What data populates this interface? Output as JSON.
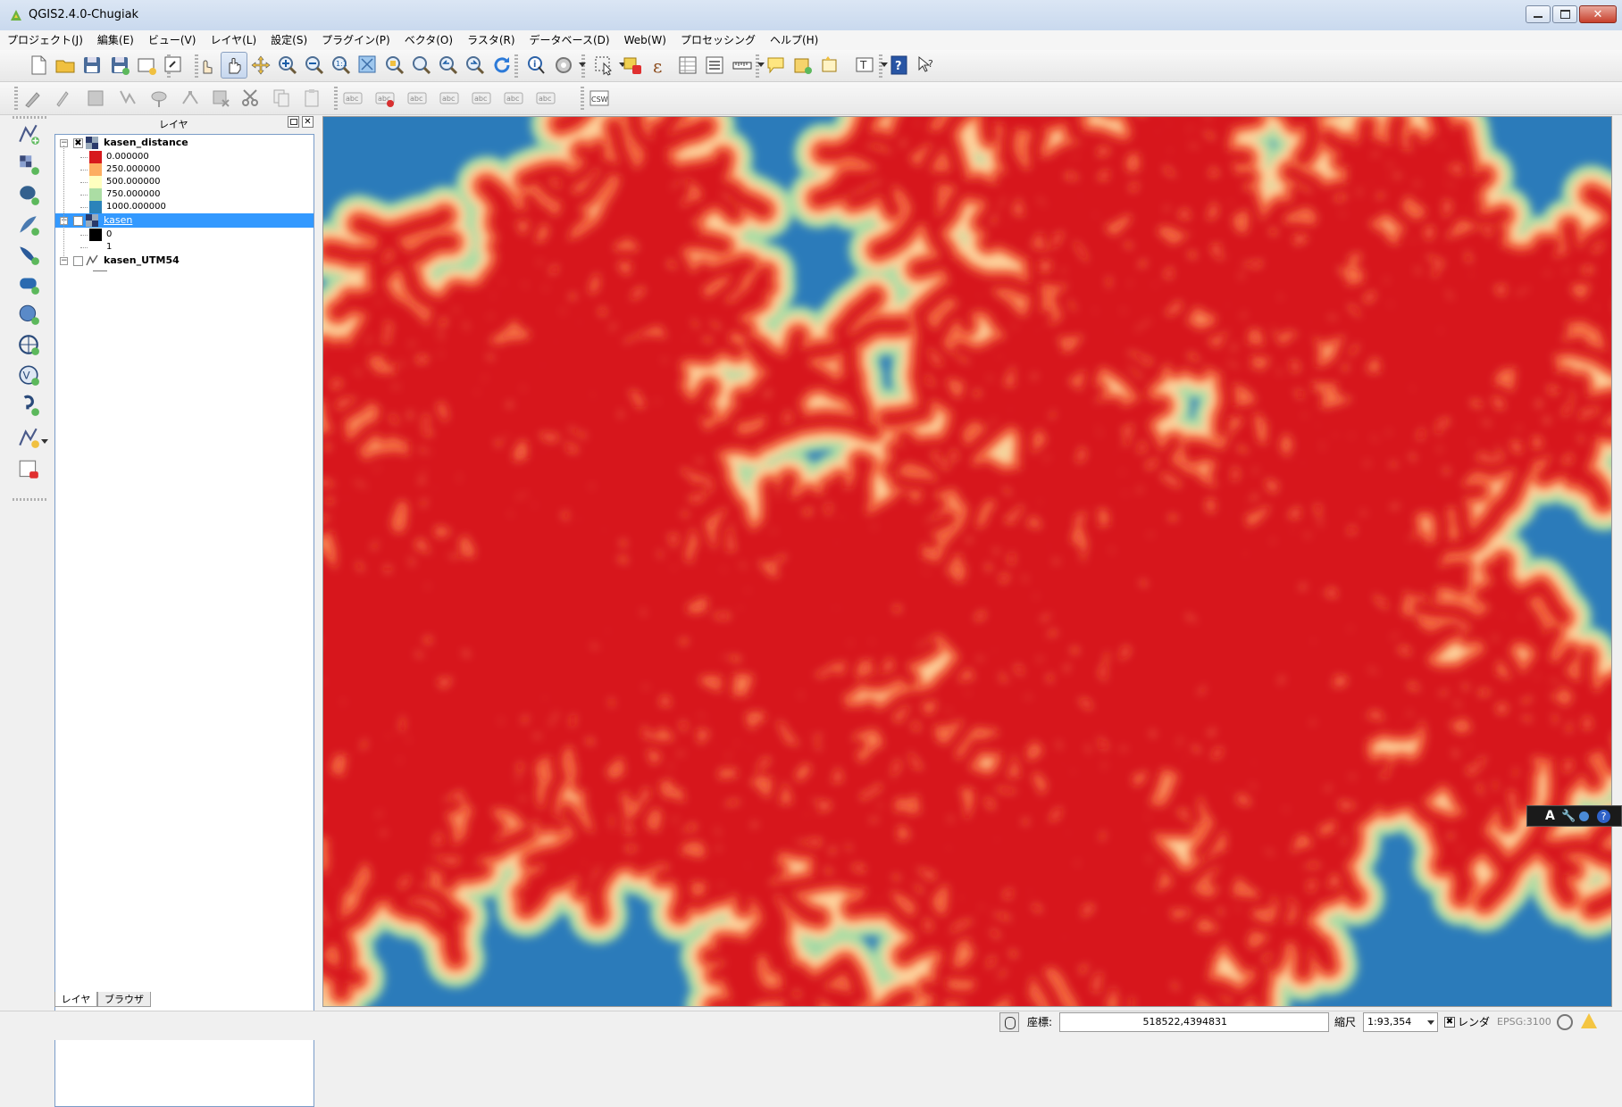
{
  "window": {
    "title": "QGIS2.4.0-Chugiak"
  },
  "menu": [
    "プロジェクト(J)",
    "編集(E)",
    "ビュー(V)",
    "レイヤ(L)",
    "設定(S)",
    "プラグイン(P)",
    "ベクタ(O)",
    "ラスタ(R)",
    "データベース(D)",
    "Web(W)",
    "プロセッシング",
    "ヘルプ(H)"
  ],
  "layer_panel": {
    "title": "レイヤ",
    "layers": [
      {
        "name": "kasen_distance",
        "checked": true,
        "legend": [
          {
            "label": "0.000000",
            "color": "#d7191c"
          },
          {
            "label": "250.000000",
            "color": "#fdae61"
          },
          {
            "label": "500.000000",
            "color": "#ffffbf"
          },
          {
            "label": "750.000000",
            "color": "#abdda4"
          },
          {
            "label": "1000.000000",
            "color": "#2b83ba"
          }
        ]
      },
      {
        "name": "kasen",
        "checked": false,
        "selected": true,
        "legend": [
          {
            "label": "0",
            "color": "#000000"
          },
          {
            "label": "1",
            "color": "#ffffff"
          }
        ]
      },
      {
        "name": "kasen_UTM54",
        "checked": false,
        "legend": []
      }
    ],
    "tabs": [
      "レイヤ",
      "ブラウザ"
    ]
  },
  "map": {
    "colors": {
      "river": "#d7191c",
      "near": "#f46d43",
      "mid": "#fdd49e",
      "far": "#abdda4",
      "background": "#2b7bba"
    }
  },
  "statusbar": {
    "coordinate_label": "座標:",
    "coordinate_value": "518522,4394831",
    "scale_label": "縮尺",
    "scale_value": "1:93,354",
    "render_label": "レンダ",
    "crs": "EPSG:3100"
  },
  "icons": {
    "toolbar1": [
      "new-project-icon",
      "open-project-icon",
      "save-project-icon",
      "save-as-icon",
      "print-composer-icon",
      "composer-manager-icon",
      "touch-zoom-icon",
      "pan-icon",
      "pan-to-selection-icon",
      "zoom-in-icon",
      "zoom-out-icon",
      "zoom-native-icon",
      "zoom-full-icon",
      "zoom-to-selection-icon",
      "zoom-to-layer-icon",
      "zoom-last-icon",
      "zoom-next-icon",
      "refresh-icon",
      "identify-icon",
      "run-action-icon",
      "select-features-icon",
      "deselect-icon",
      "field-calculator-icon",
      "attribute-table-icon",
      "statistics-icon",
      "measure-icon",
      "map-tips-icon",
      "new-bookmark-icon",
      "show-bookmarks-icon",
      "text-annotation-icon",
      "help-icon",
      "whats-this-icon"
    ],
    "toolbar2": [
      "current-edits-icon",
      "toggle-editing-icon",
      "save-edits-icon",
      "add-feature-icon",
      "move-feature-icon",
      "node-tool-icon",
      "delete-selected-icon",
      "cut-features-icon",
      "copy-features-icon",
      "paste-features-icon",
      "label-icon",
      "layer-labeling-icon",
      "pin-labels-icon",
      "show-hide-labels-icon",
      "move-label-icon",
      "rotate-label-icon",
      "change-label-icon",
      "csw-icon"
    ],
    "left": [
      "add-vector-layer-icon",
      "add-raster-layer-icon",
      "add-postgis-layer-icon",
      "add-spatialite-layer-icon",
      "add-mssql-layer-icon",
      "add-oracle-layer-icon",
      "add-wms-layer-icon",
      "add-wcs-layer-icon",
      "add-wfs-layer-icon",
      "add-delimited-text-icon",
      "new-shapefile-icon",
      "remove-layer-icon"
    ]
  }
}
